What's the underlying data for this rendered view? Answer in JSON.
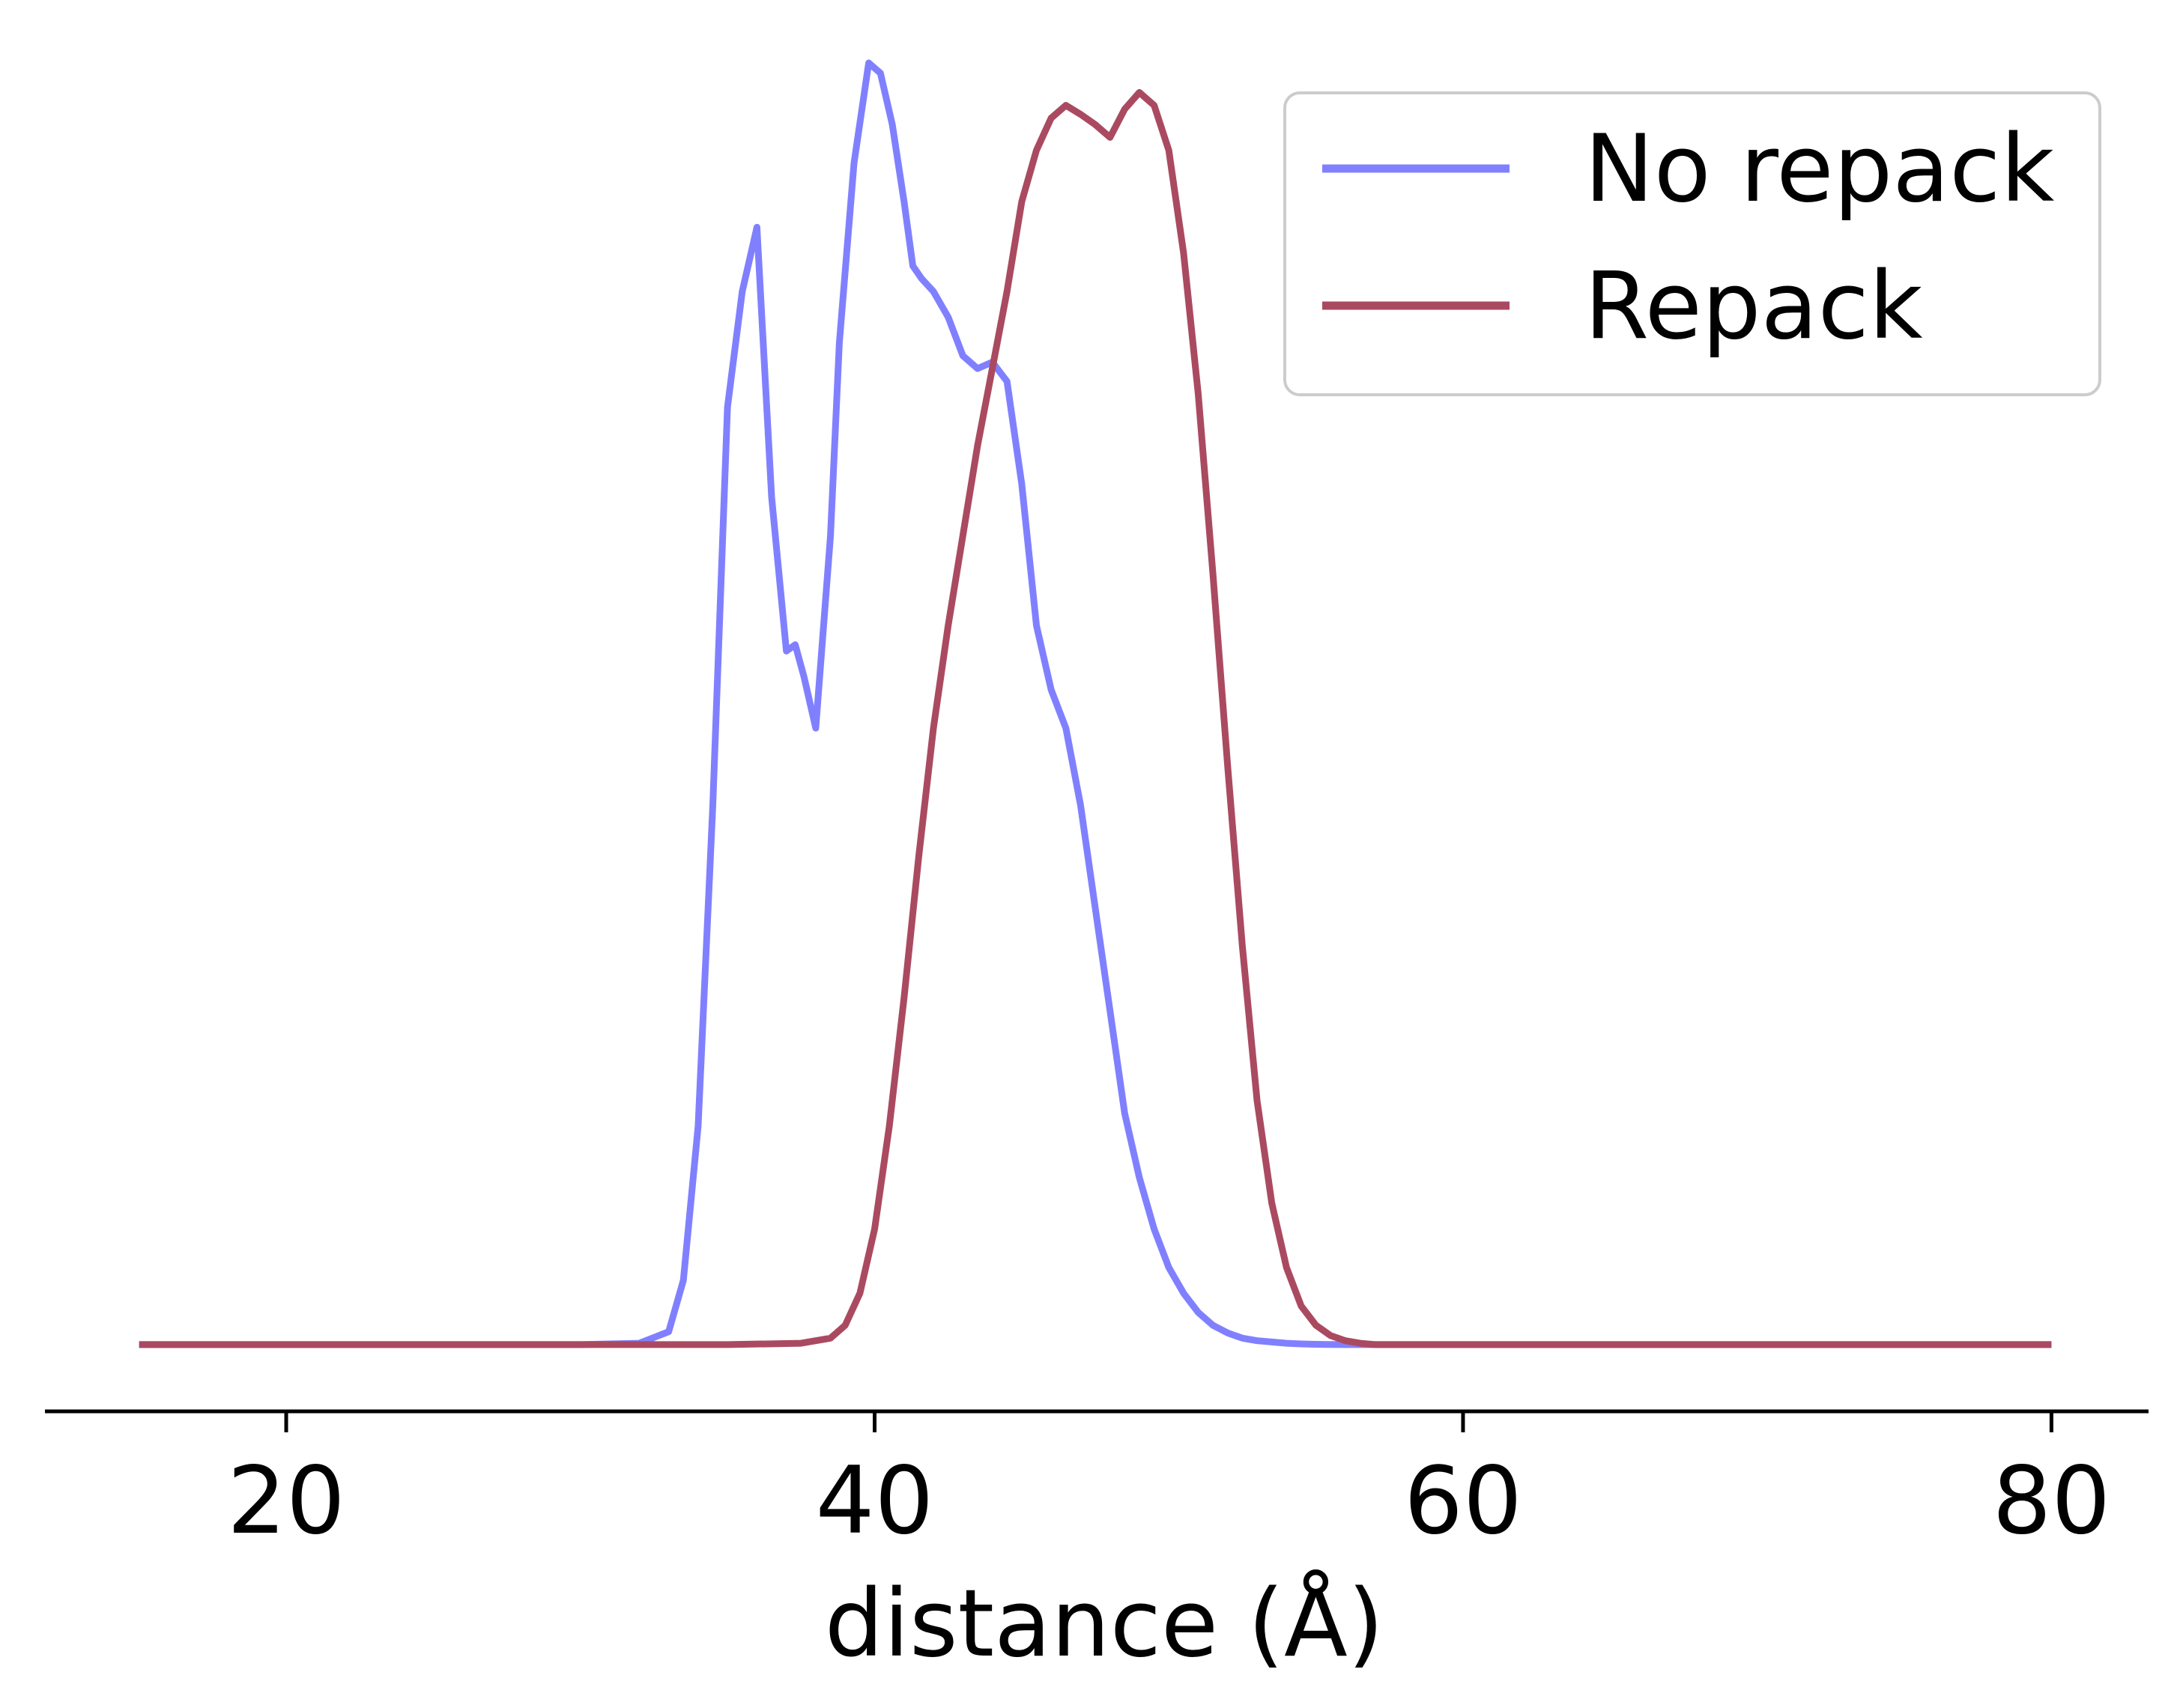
{
  "chart_data": {
    "type": "line",
    "title": "",
    "xlabel": "distance (Å)",
    "ylabel": "",
    "xlim": [
      11.8,
      83.3
    ],
    "ylim": [
      -0.052,
      1.012
    ],
    "x_ticks": [
      20,
      40,
      60,
      80
    ],
    "x_tick_labels": [
      "20",
      "40",
      "60",
      "80"
    ],
    "show_y_axis": false,
    "grid": false,
    "legend": {
      "position": "top-right"
    },
    "series": [
      {
        "name": "No repack",
        "color": "#8080ff",
        "x": [
          15,
          20,
          25,
          30,
          32,
          33,
          33.5,
          34,
          34.5,
          35,
          35.5,
          36,
          36.5,
          37,
          37.3,
          37.6,
          38,
          38.5,
          38.8,
          39.3,
          39.8,
          40.2,
          40.6,
          41,
          41.3,
          41.6,
          42,
          42.5,
          43,
          43.5,
          44,
          44.5,
          45,
          45.5,
          46,
          46.5,
          47,
          47.5,
          48,
          48.5,
          49,
          49.5,
          50,
          50.5,
          51,
          51.5,
          52,
          52.5,
          53,
          53.5,
          54,
          54.5,
          55,
          55.5,
          56,
          57,
          58,
          60,
          62,
          65,
          70,
          75,
          80
        ],
        "values": [
          0,
          0,
          0,
          0,
          0.001,
          0.01,
          0.05,
          0.17,
          0.42,
          0.73,
          0.82,
          0.87,
          0.66,
          0.54,
          0.545,
          0.52,
          0.48,
          0.63,
          0.78,
          0.92,
          0.998,
          0.99,
          0.95,
          0.89,
          0.84,
          0.83,
          0.82,
          0.8,
          0.77,
          0.76,
          0.765,
          0.75,
          0.67,
          0.56,
          0.51,
          0.48,
          0.42,
          0.34,
          0.26,
          0.18,
          0.13,
          0.09,
          0.06,
          0.04,
          0.025,
          0.015,
          0.009,
          0.005,
          0.003,
          0.002,
          0.001,
          0.0005,
          0.0002,
          0.0001,
          0,
          0,
          0,
          0,
          0,
          0,
          0,
          0,
          0
        ]
      },
      {
        "name": "Repack",
        "color": "#aa4a61",
        "x": [
          15,
          20,
          25,
          30,
          35,
          37.5,
          38.5,
          39,
          39.5,
          40,
          40.5,
          41,
          41.5,
          42,
          42.5,
          43,
          43.5,
          44,
          44.5,
          45,
          45.5,
          46,
          46.5,
          47,
          47.5,
          48,
          48.5,
          49,
          49.5,
          50,
          50.5,
          51,
          51.5,
          52,
          52.5,
          53,
          53.5,
          54,
          54.5,
          55,
          55.5,
          56,
          56.5,
          57,
          57.5,
          58,
          58.5,
          59,
          59.5,
          60,
          61,
          62,
          65,
          70,
          75,
          80
        ],
        "values": [
          0,
          0,
          0,
          0,
          0,
          0.001,
          0.005,
          0.015,
          0.04,
          0.09,
          0.17,
          0.27,
          0.38,
          0.48,
          0.56,
          0.63,
          0.7,
          0.76,
          0.82,
          0.89,
          0.93,
          0.955,
          0.965,
          0.958,
          0.95,
          0.94,
          0.962,
          0.975,
          0.965,
          0.93,
          0.85,
          0.74,
          0.6,
          0.45,
          0.31,
          0.19,
          0.11,
          0.06,
          0.03,
          0.015,
          0.007,
          0.003,
          0.001,
          0,
          0,
          0,
          0,
          0,
          0,
          0,
          0,
          0,
          0,
          0,
          0,
          0
        ]
      }
    ]
  }
}
